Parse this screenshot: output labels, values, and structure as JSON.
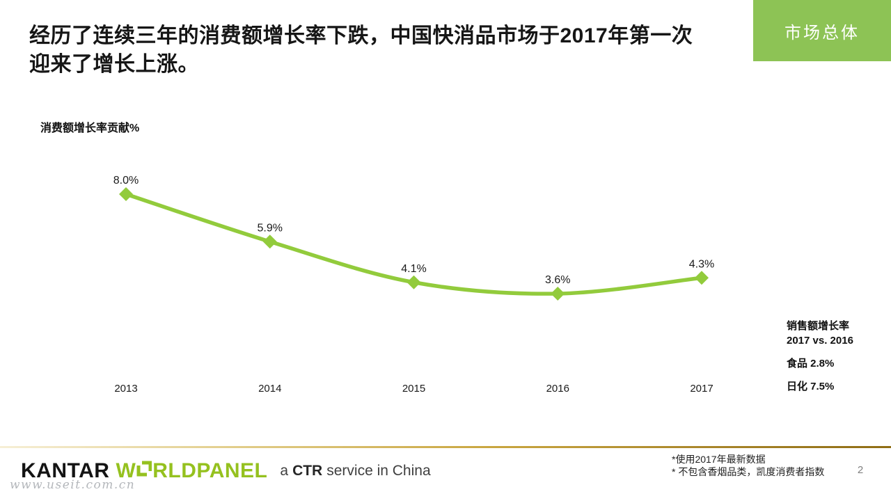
{
  "header": {
    "title_lines": [
      "经历了连续三年的消费额增长率下跌，中国快消品市场于2017年第一次",
      "迎来了增长上涨。"
    ],
    "badge": "市场总体"
  },
  "chart_data": {
    "type": "line",
    "title": "消费额增长率贡献%",
    "categories": [
      "2013",
      "2014",
      "2015",
      "2016",
      "2017"
    ],
    "series": [
      {
        "name": "消费额增长率贡献%",
        "values": [
          8.0,
          5.9,
          4.1,
          3.6,
          4.3
        ]
      }
    ],
    "point_labels": [
      "8.0%",
      "5.9%",
      "4.1%",
      "3.6%",
      "4.3%"
    ],
    "xlabel": "",
    "ylabel": "消费额增长率贡献%",
    "ylim": [
      0,
      10
    ],
    "grid": false,
    "legend_position": "none",
    "marker": "diamond",
    "line_color": "#92cb3c"
  },
  "side_note": {
    "line1": "销售额增长率",
    "line2": "2017 vs. 2016",
    "item1": "食品 2.8%",
    "item2": "日化 7.5%"
  },
  "footer": {
    "logo": {
      "kantar": "KANTAR",
      "worldpanel_prefix": "W",
      "worldpanel_suffix": "RLDPANEL",
      "tagline_a": "a",
      "tagline_ctr": "CTR",
      "tagline_rest": "service in China"
    },
    "watermark": "www.useit.com.cn",
    "footnote1": "*使用2017年最新数据",
    "footnote2": "* 不包含香烟品类，凯度消费者指数",
    "page_number": "2"
  },
  "colors": {
    "accent_green": "#8dc355",
    "line_green": "#92cb3c",
    "logo_green": "#95c11f",
    "gold_light": "#f6efd6",
    "gold_mid": "#c9a640",
    "gold_dark": "#8f6d14",
    "text": "#1a1a1a",
    "gray": "#7f7f7f"
  }
}
